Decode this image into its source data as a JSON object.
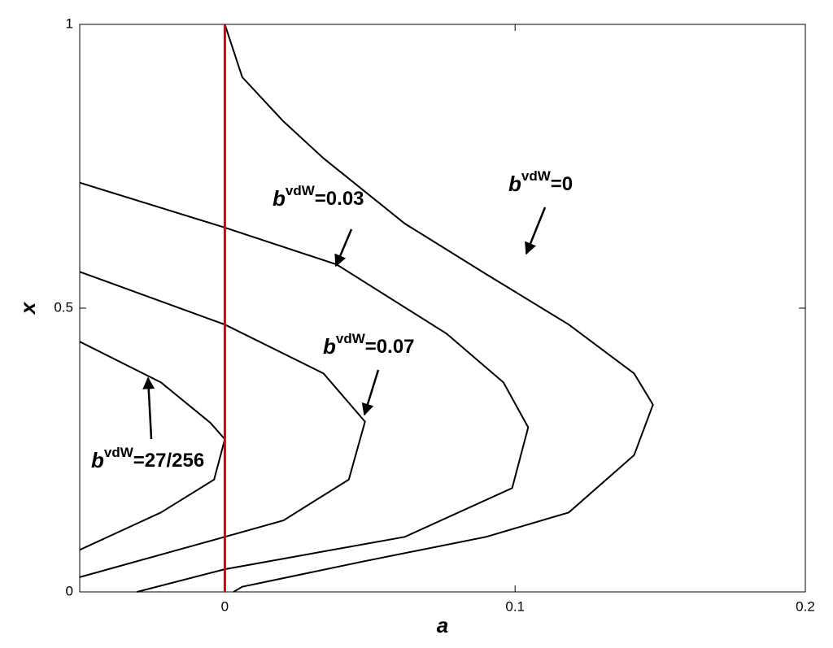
{
  "chart_data": {
    "type": "line",
    "xlabel": "a",
    "ylabel": "x",
    "xlim": [
      -0.05,
      0.2
    ],
    "ylim": [
      0,
      1
    ],
    "xticks": [
      0,
      0.1,
      0.2
    ],
    "yticks": [
      0,
      0.5,
      1
    ],
    "series": [
      {
        "color": "#000000",
        "x": [
          0,
          0.006,
          0.02,
          0.034,
          0.062,
          0.09,
          0.1185,
          0.141,
          0.1475,
          0.141,
          0.1185,
          0.09,
          0.048,
          0.006,
          0.003
        ],
        "values": [
          1,
          0.907,
          0.83,
          0.764,
          0.649,
          0.56,
          0.471,
          0.385,
          0.33,
          0.241,
          0.14,
          0.097,
          0.054,
          0.009,
          0
        ]
      },
      {
        "color": "#000000",
        "x": [
          -0.05,
          0,
          0.0385,
          0.0764,
          0.096,
          0.1045,
          0.099,
          0.062,
          0,
          -0.0303
        ],
        "values": [
          0.721,
          0.642,
          0.577,
          0.455,
          0.369,
          0.29,
          0.183,
          0.097,
          0.04,
          0
        ]
      },
      {
        "color": "#000000",
        "x": [
          -0.05,
          0,
          0.034,
          0.0483,
          0.0427,
          0.0202,
          0,
          -0.05
        ],
        "values": [
          0.564,
          0.471,
          0.385,
          0.3,
          0.198,
          0.126,
          0.097,
          0.026
        ]
      },
      {
        "color": "#000000",
        "x": [
          -0.05,
          -0.022,
          -0.005,
          0,
          -0.0037,
          -0.022,
          -0.05
        ],
        "values": [
          0.441,
          0.369,
          0.298,
          0.269,
          0.198,
          0.14,
          0.074
        ]
      },
      {
        "color": "#e00000",
        "x": [
          0,
          0
        ],
        "values": [
          0,
          1
        ]
      }
    ],
    "annotations": [
      {
        "base": "b",
        "sup": "vdW",
        "text": "=0"
      },
      {
        "base": "b",
        "sup": "vdW",
        "text": "=0.03"
      },
      {
        "base": "b",
        "sup": "vdW",
        "text": "=0.07"
      },
      {
        "base": "b",
        "sup": "vdW",
        "text": "=27/256"
      }
    ]
  }
}
